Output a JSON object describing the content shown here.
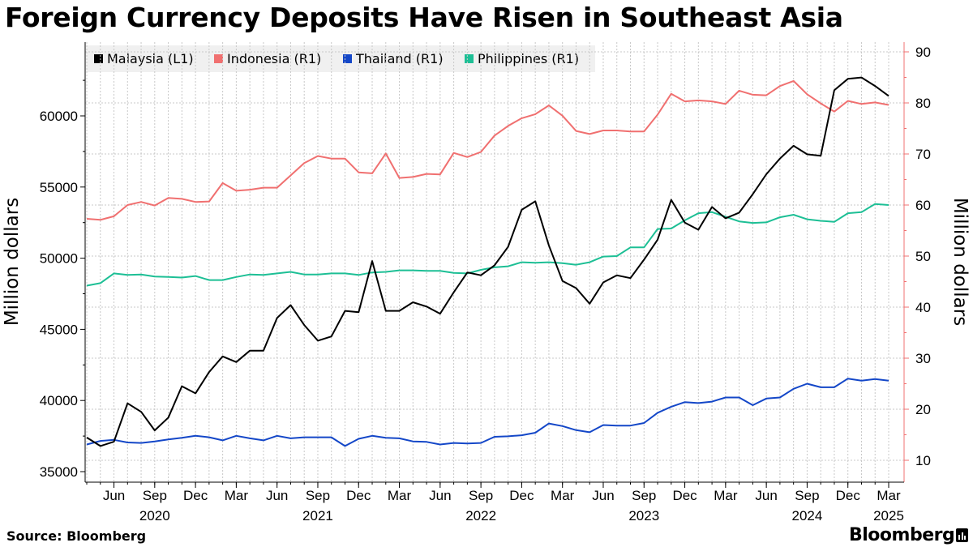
{
  "title": "Foreign Currency Deposits Have Risen in Southeast Asia",
  "source": "Source: Bloomberg",
  "brand": "Bloomberg",
  "colors": {
    "malaysia": "#000000",
    "indonesia": "#f07070",
    "thailand": "#1447c8",
    "philippines": "#1dbf95",
    "grid": "#c8c8c8"
  },
  "chart_data": {
    "type": "line",
    "x_label_months": [
      "Jun",
      "Sep",
      "Dec",
      "Mar",
      "Jun",
      "Sep",
      "Dec",
      "Mar",
      "Jun",
      "Sep",
      "Dec",
      "Mar",
      "Jun",
      "Sep",
      "Dec",
      "Mar",
      "Jun",
      "Sep",
      "Dec",
      "Mar"
    ],
    "x_label_years": [
      "2020",
      "2021",
      "2022",
      "2023",
      "2024",
      "2025"
    ],
    "x_label_year_idx": [
      1,
      5,
      9,
      13,
      17,
      19
    ],
    "left_axis": {
      "label": "Million dollars",
      "ticks": [
        35000,
        40000,
        45000,
        50000,
        55000,
        60000
      ],
      "tick_labels": [
        "35000",
        "40000",
        "45000",
        "50000",
        "55000",
        "60000"
      ],
      "range": [
        35000,
        64000
      ]
    },
    "right_axis": {
      "label": "Million dollars",
      "ticks": [
        10,
        20,
        30,
        40,
        50,
        60,
        70,
        80,
        90
      ],
      "tick_labels": [
        "10",
        "20",
        "30",
        "40",
        "50",
        "60",
        "70",
        "80",
        "90"
      ],
      "range": [
        10,
        90
      ]
    },
    "x": [
      "2020-04",
      "2020-05",
      "2020-06",
      "2020-07",
      "2020-08",
      "2020-09",
      "2020-10",
      "2020-11",
      "2020-12",
      "2021-01",
      "2021-02",
      "2021-03",
      "2021-04",
      "2021-05",
      "2021-06",
      "2021-07",
      "2021-08",
      "2021-09",
      "2021-10",
      "2021-11",
      "2021-12",
      "2022-01",
      "2022-02",
      "2022-03",
      "2022-04",
      "2022-05",
      "2022-06",
      "2022-07",
      "2022-08",
      "2022-09",
      "2022-10",
      "2022-11",
      "2022-12",
      "2023-01",
      "2023-02",
      "2023-03",
      "2023-04",
      "2023-05",
      "2023-06",
      "2023-07",
      "2023-08",
      "2023-09",
      "2023-10",
      "2023-11",
      "2023-12",
      "2024-01",
      "2024-02",
      "2024-03",
      "2024-04",
      "2024-05",
      "2024-06",
      "2024-07",
      "2024-08",
      "2024-09",
      "2024-10",
      "2024-11",
      "2024-12",
      "2025-01",
      "2025-02",
      "2025-03"
    ],
    "series": [
      {
        "name": "Malaysia (L1)",
        "axis": "left",
        "color_key": "malaysia",
        "values": [
          37400,
          36800,
          37100,
          39800,
          39200,
          37900,
          38800,
          41000,
          40500,
          42000,
          43100,
          42700,
          43500,
          43500,
          45800,
          46700,
          45300,
          44200,
          44500,
          46300,
          46200,
          49800,
          46300,
          46300,
          46900,
          46600,
          46100,
          47600,
          49000,
          48800,
          49500,
          50800,
          53400,
          54000,
          50900,
          48400,
          47900,
          46800,
          48300,
          48800,
          48600,
          49900,
          51300,
          54100,
          52500,
          52000,
          53600,
          52800,
          53200,
          54500,
          55900,
          57000,
          57900,
          57300,
          57200,
          61800,
          62600,
          62700,
          62100,
          61400
        ]
      },
      {
        "name": "Indonesia (R1)",
        "axis": "right",
        "color_key": "indonesia",
        "values": [
          57.3,
          57.1,
          57.8,
          60.0,
          60.6,
          59.9,
          61.4,
          61.2,
          60.6,
          60.7,
          64.3,
          62.8,
          63.0,
          63.4,
          63.4,
          65.8,
          68.2,
          69.6,
          69.1,
          69.1,
          66.4,
          66.2,
          70.1,
          65.3,
          65.5,
          66.1,
          66.0,
          70.2,
          69.4,
          70.4,
          73.6,
          75.5,
          77.0,
          77.8,
          79.5,
          77.5,
          74.5,
          73.9,
          74.6,
          74.6,
          74.4,
          74.4,
          77.7,
          81.8,
          80.3,
          80.5,
          80.3,
          79.8,
          82.4,
          81.6,
          81.5,
          83.3,
          84.3,
          81.7,
          79.9,
          78.3,
          80.4,
          79.8,
          80.1,
          79.6
        ]
      },
      {
        "name": "Thailand (R1)",
        "axis": "right",
        "color_key": "thailand",
        "values": [
          13.1,
          13.8,
          14.0,
          13.5,
          13.4,
          13.7,
          14.1,
          14.4,
          14.8,
          14.5,
          13.9,
          14.8,
          14.3,
          13.9,
          14.8,
          14.3,
          14.5,
          14.5,
          14.5,
          12.8,
          14.2,
          14.8,
          14.4,
          14.3,
          13.7,
          13.6,
          13.1,
          13.4,
          13.3,
          13.4,
          14.6,
          14.7,
          14.9,
          15.4,
          17.2,
          16.7,
          15.9,
          15.5,
          16.9,
          16.8,
          16.8,
          17.3,
          19.3,
          20.5,
          21.4,
          21.2,
          21.5,
          22.3,
          22.3,
          20.8,
          22.1,
          22.3,
          24.0,
          25.0,
          24.3,
          24.3,
          26.0,
          25.6,
          25.9,
          25.6
        ]
      },
      {
        "name": "Philippines (R1)",
        "axis": "right",
        "color_key": "philippines",
        "values": [
          44.2,
          44.7,
          46.6,
          46.3,
          46.4,
          46.0,
          45.9,
          45.8,
          46.1,
          45.3,
          45.3,
          45.9,
          46.4,
          46.3,
          46.6,
          46.9,
          46.4,
          46.4,
          46.6,
          46.6,
          46.3,
          46.8,
          46.9,
          47.2,
          47.2,
          47.1,
          47.1,
          46.7,
          46.6,
          47.3,
          47.8,
          48.0,
          48.8,
          48.7,
          48.8,
          48.6,
          48.3,
          48.8,
          49.9,
          50.0,
          51.7,
          51.7,
          55.3,
          55.4,
          57.0,
          58.4,
          58.6,
          57.7,
          56.8,
          56.5,
          56.6,
          57.6,
          58.1,
          57.2,
          56.9,
          56.7,
          58.4,
          58.6,
          60.2,
          60.0
        ]
      }
    ],
    "grid": true,
    "legend_position": "top-left"
  }
}
